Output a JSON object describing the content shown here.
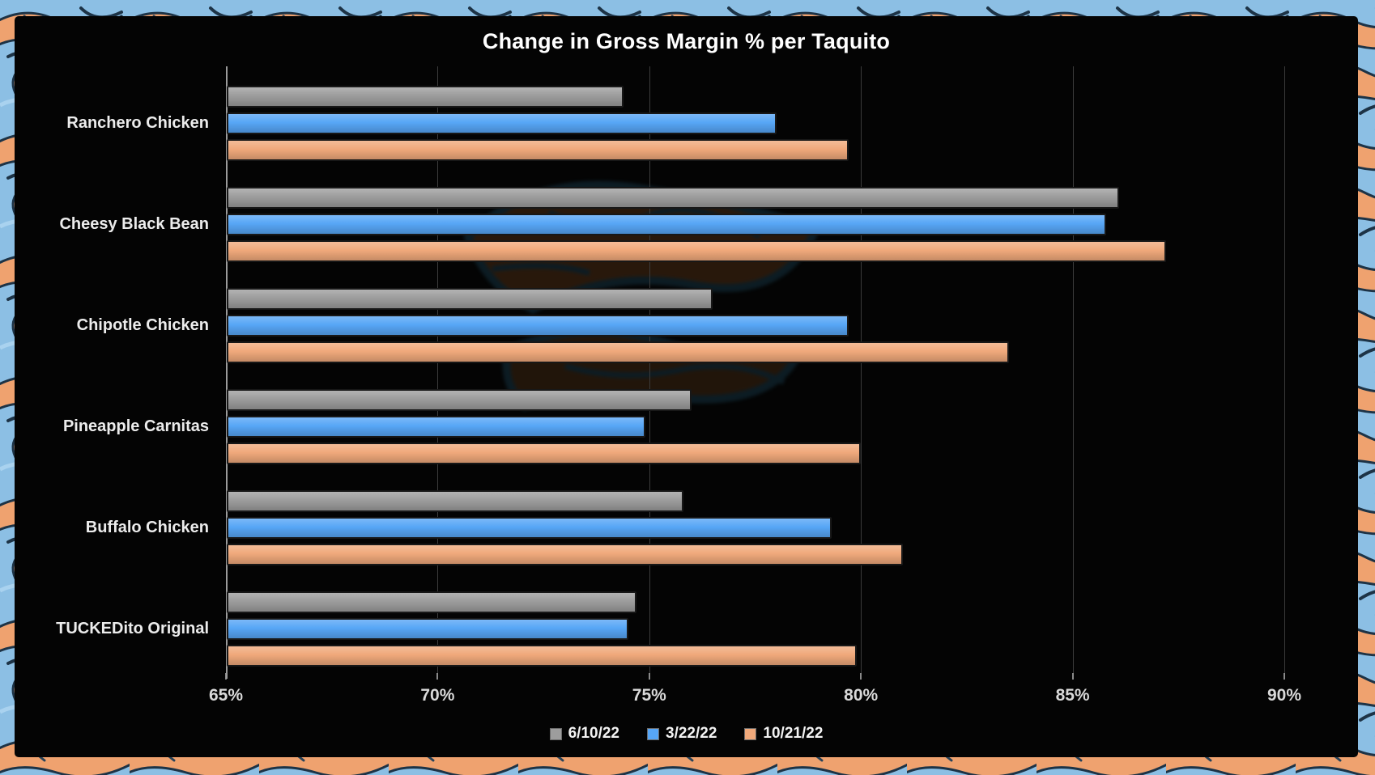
{
  "chart_data": {
    "type": "bar",
    "orientation": "horizontal",
    "title": "Change in Gross Margin % per Taquito",
    "categories": [
      "Ranchero Chicken",
      "Cheesy Black Bean",
      "Chipotle Chicken",
      "Pineapple Carnitas",
      "Buffalo Chicken",
      "TUCKEDito Original"
    ],
    "series": [
      {
        "name": "6/10/22",
        "color": "#9d9d9d",
        "values": [
          74.4,
          86.1,
          76.5,
          76.0,
          75.8,
          74.7
        ]
      },
      {
        "name": "3/22/22",
        "color": "#57a6f6",
        "values": [
          78.0,
          85.8,
          79.7,
          74.9,
          79.3,
          74.5
        ]
      },
      {
        "name": "10/21/22",
        "color": "#f0a97b",
        "values": [
          79.7,
          87.2,
          83.5,
          80.0,
          81.0,
          79.9
        ]
      }
    ],
    "xlim": [
      65,
      90
    ],
    "x_tick_values": [
      65,
      70,
      75,
      80,
      85,
      90
    ],
    "x_tick_labels": [
      "65%",
      "70%",
      "75%",
      "80%",
      "85%",
      "90%"
    ],
    "value_format": "percent",
    "grid": "vertical",
    "legend_position": "bottom",
    "colors": {
      "plot_background": "#040404",
      "gridline": "#3b3b3b",
      "axis_line": "#9b9b9b",
      "title_text": "#ffffff",
      "label_text": "#ececec",
      "border_pattern_blue": "#8cbfe4",
      "border_pattern_orange": "#efa26f",
      "border_pattern_navy": "#1d3346"
    }
  }
}
